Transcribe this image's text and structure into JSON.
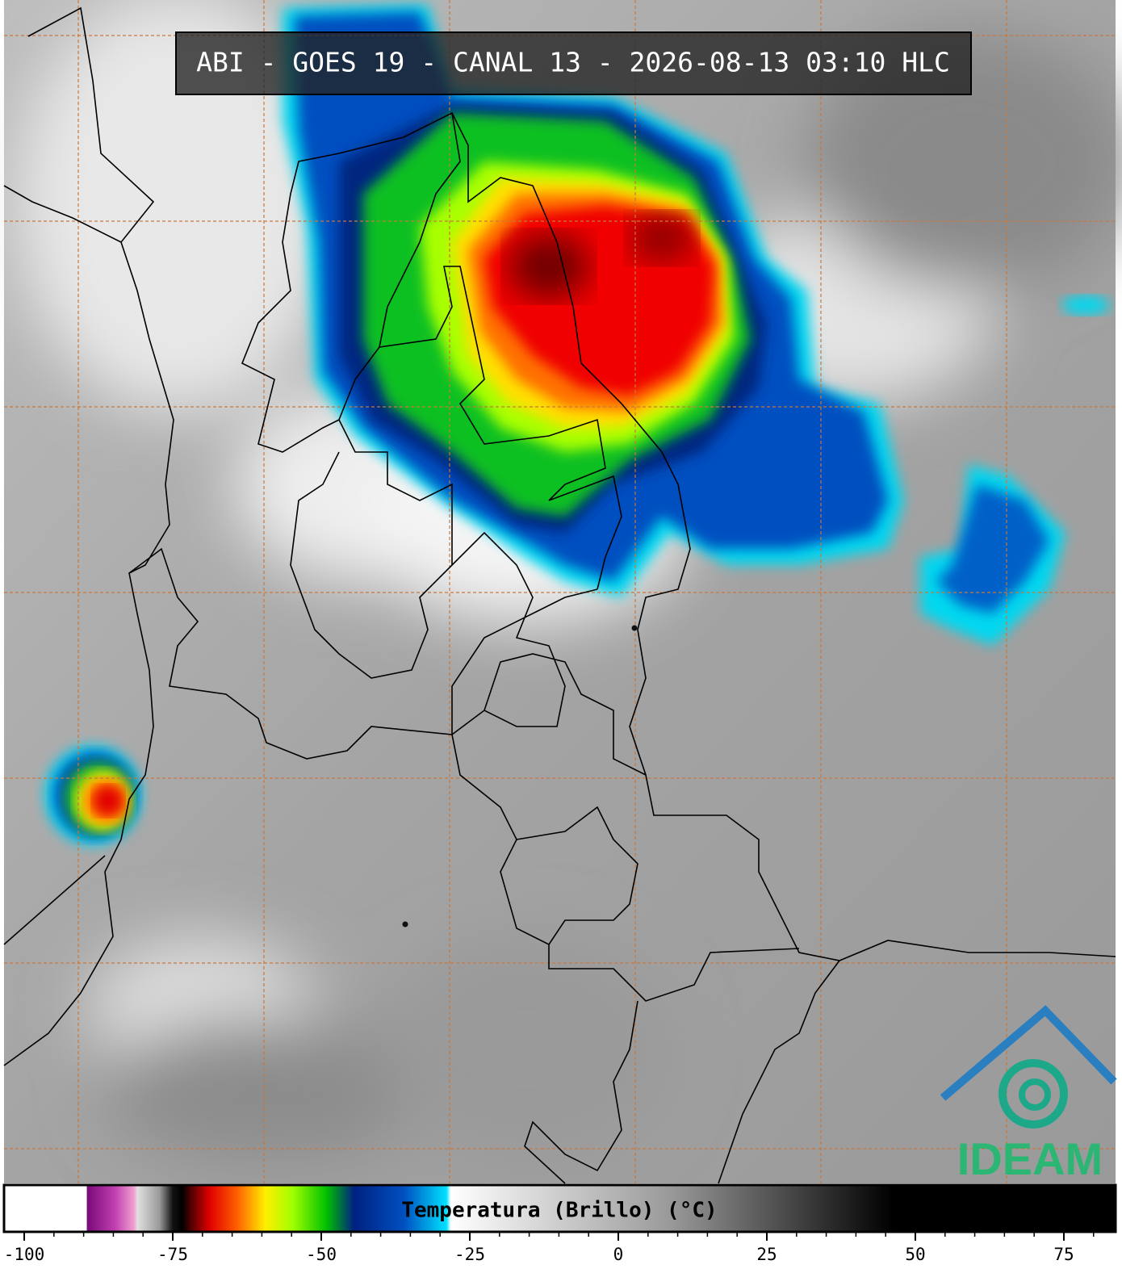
{
  "header": {
    "title": "ABI - GOES 19 - CANAL 13 - 2026-08-13 03:10 HLC"
  },
  "colorbar": {
    "label": "Temperatura (Brillo) (°C)",
    "xlim": [
      -103.4,
      83.7
    ],
    "ticks": [
      -100,
      -75,
      -50,
      -25,
      0,
      25,
      50,
      75
    ],
    "minor_ticks": [
      -95,
      -90,
      -85,
      -80,
      -70,
      -65,
      -60,
      -55,
      -45,
      -40,
      -35,
      -30,
      -20,
      -15,
      -10,
      -5,
      5,
      10,
      15,
      20,
      30,
      35,
      40,
      45,
      55,
      60,
      65,
      70,
      80
    ]
  },
  "logo": {
    "text": "IDEAM"
  }
}
